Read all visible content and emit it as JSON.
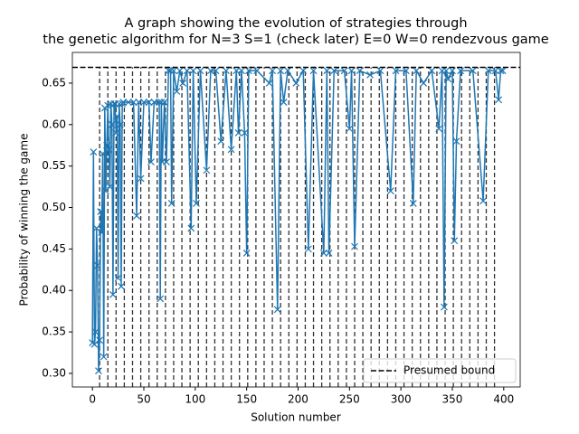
{
  "chart_data": {
    "type": "line",
    "title": [
      "A graph showing the evolution of strategies through",
      "the genetic algorithm for N=3 S=1 (check later) E=0 W=0 rendezvous game"
    ],
    "xlabel": "Solution number",
    "ylabel": "Probability of winning the game",
    "x": [
      0,
      1,
      2,
      3,
      4,
      5,
      6,
      7,
      8,
      9,
      10,
      11,
      12,
      13,
      14,
      15,
      16,
      17,
      18,
      19,
      20,
      21,
      22,
      23,
      24,
      25,
      26,
      27,
      28,
      29,
      30,
      35,
      40,
      43,
      45,
      47,
      50,
      55,
      57,
      60,
      65,
      66,
      67,
      68,
      70,
      72,
      74,
      76,
      77,
      79,
      82,
      85,
      88,
      92,
      96,
      98,
      101,
      105,
      111,
      115,
      120,
      125,
      130,
      135,
      140,
      142,
      145,
      148,
      150,
      152,
      160,
      172,
      175,
      180,
      183,
      186,
      190,
      198,
      205,
      210,
      215,
      225,
      228,
      230,
      235,
      245,
      250,
      252,
      255,
      260,
      270,
      280,
      290,
      295,
      305,
      312,
      315,
      322,
      330,
      337,
      340,
      342,
      344,
      346,
      350,
      352,
      354,
      358,
      370,
      380,
      385,
      392,
      395,
      397,
      399
    ],
    "series": [
      {
        "color": "#1f77b4",
        "values": [
          0.337,
          0.567,
          0.335,
          0.35,
          0.475,
          0.43,
          0.303,
          0.34,
          0.495,
          0.47,
          0.565,
          0.32,
          0.62,
          0.52,
          0.575,
          0.623,
          0.57,
          0.525,
          0.625,
          0.6,
          0.395,
          0.625,
          0.625,
          0.59,
          0.61,
          0.415,
          0.625,
          0.6,
          0.405,
          0.625,
          0.627,
          0.627,
          0.627,
          0.49,
          0.627,
          0.535,
          0.627,
          0.627,
          0.555,
          0.627,
          0.627,
          0.39,
          0.627,
          0.555,
          0.627,
          0.555,
          0.665,
          0.665,
          0.505,
          0.665,
          0.64,
          0.665,
          0.65,
          0.665,
          0.475,
          0.665,
          0.505,
          0.665,
          0.545,
          0.665,
          0.665,
          0.58,
          0.665,
          0.57,
          0.665,
          0.59,
          0.665,
          0.59,
          0.445,
          0.665,
          0.665,
          0.65,
          0.665,
          0.377,
          0.665,
          0.627,
          0.665,
          0.65,
          0.665,
          0.45,
          0.665,
          0.445,
          0.665,
          0.445,
          0.665,
          0.665,
          0.595,
          0.665,
          0.453,
          0.665,
          0.66,
          0.665,
          0.52,
          0.665,
          0.665,
          0.505,
          0.665,
          0.65,
          0.665,
          0.595,
          0.665,
          0.38,
          0.665,
          0.655,
          0.665,
          0.46,
          0.58,
          0.665,
          0.665,
          0.508,
          0.665,
          0.665,
          0.63,
          0.665,
          0.665
        ]
      }
    ],
    "bound": {
      "name": "Presumed bound",
      "value": 0.669,
      "color": "#000000"
    },
    "vlines": [
      7,
      15,
      23,
      31,
      39,
      47,
      55,
      63,
      71,
      79,
      87,
      95,
      103,
      111,
      119,
      127,
      135,
      143,
      151,
      159,
      167,
      175,
      183,
      191,
      199,
      207,
      215,
      223,
      231,
      239,
      247,
      255,
      263,
      271,
      279,
      287,
      295,
      303,
      311,
      319,
      327,
      335,
      343,
      351,
      359,
      367,
      375,
      383,
      391
    ],
    "xlim": [
      -19.5,
      416
    ],
    "ylim": [
      0.2836,
      0.687
    ],
    "xticks": [
      0,
      50,
      100,
      150,
      200,
      250,
      300,
      350,
      400
    ],
    "yticks": [
      {
        "value": 0.3,
        "label": "0.30"
      },
      0.35,
      {
        "value": 0.4,
        "label": "0.40"
      },
      0.45,
      {
        "value": 0.5,
        "label": "0.50"
      },
      0.55,
      {
        "value": 0.6,
        "label": "0.60"
      },
      0.65
    ],
    "legend": "lower right"
  }
}
